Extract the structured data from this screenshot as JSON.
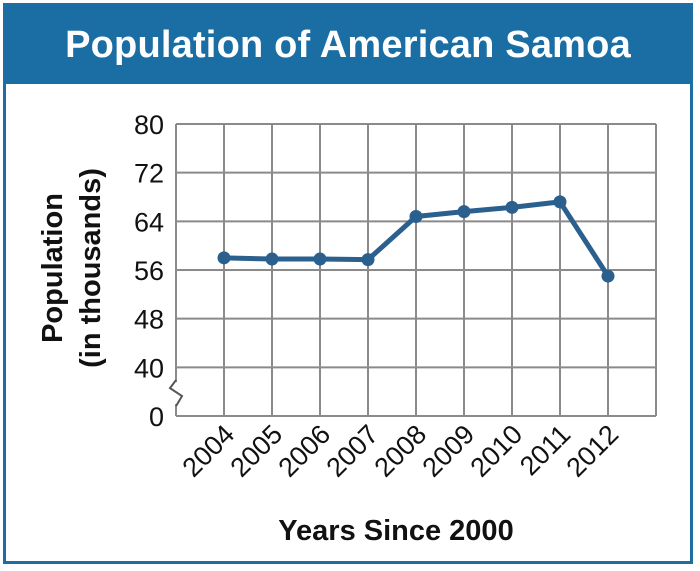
{
  "chart_data": {
    "type": "line",
    "title": "Population of American Samoa",
    "xlabel": "Years Since 2000",
    "ylabel_line1": "Population",
    "ylabel_line2": "(in thousands)",
    "categories": [
      "2004",
      "2005",
      "2006",
      "2007",
      "2008",
      "2009",
      "2010",
      "2011",
      "2012"
    ],
    "values": [
      58,
      57.8,
      57.8,
      57.7,
      64.8,
      65.6,
      66.3,
      67.2,
      55
    ],
    "y_ticks": [
      "80",
      "72",
      "64",
      "56",
      "48",
      "40",
      "0"
    ],
    "ylim": [
      0,
      80
    ],
    "axis_break": true,
    "grid": true,
    "colors": {
      "title_bar": "#1b6ea4",
      "line": "#2b5f8e",
      "grid": "#8a8a8a",
      "frame": "#1d6fa3"
    }
  }
}
